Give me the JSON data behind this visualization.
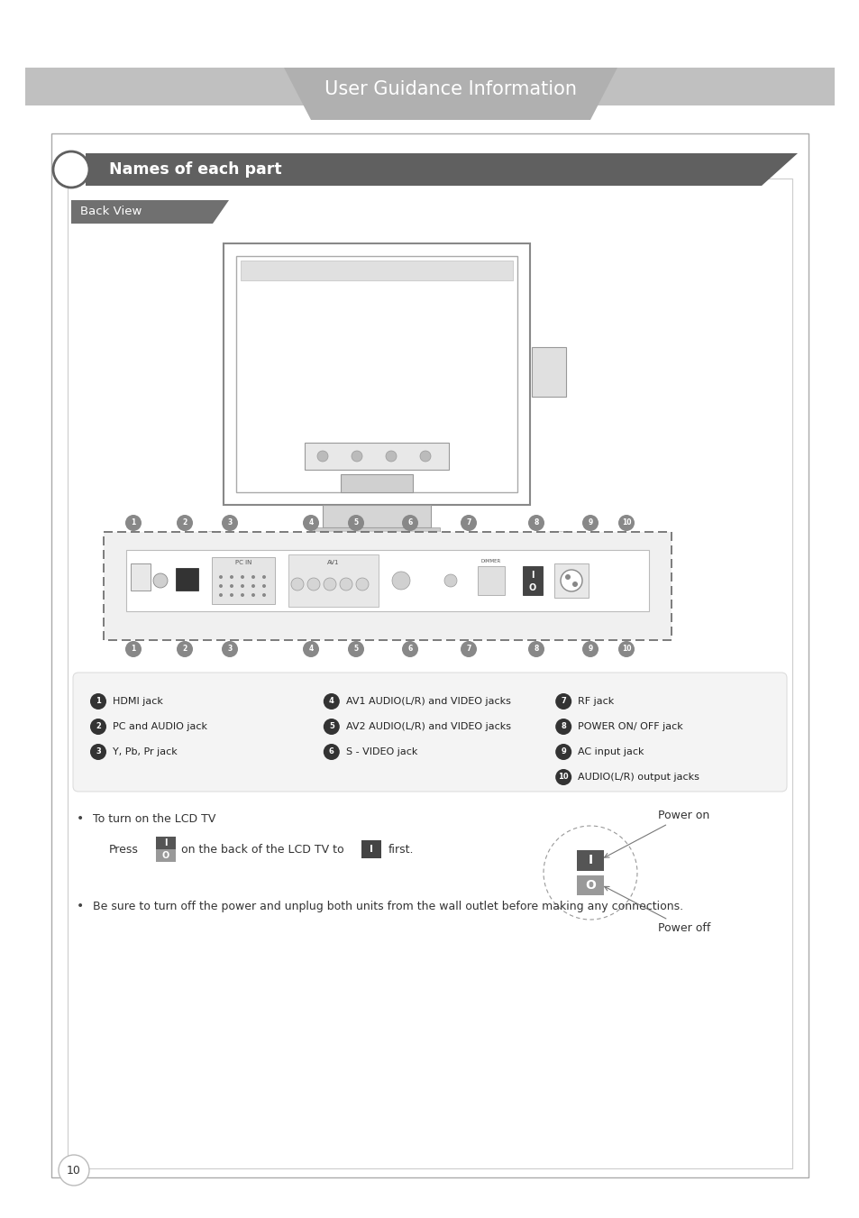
{
  "page_bg": "#ffffff",
  "header_bg": "#c0c0c0",
  "header_text": "User Guidance Information",
  "header_text_color": "#ffffff",
  "header_tab_color": "#b0b0b0",
  "section_bg": "#606060",
  "section_text": "Names of each part",
  "section_text_color": "#ffffff",
  "backview_bg": "#707070",
  "backview_text": "Back View",
  "backview_text_color": "#ffffff",
  "outer_border_color": "#aaaaaa",
  "inner_border_color": "#cccccc",
  "labels": [
    {
      "num": "1",
      "text": "HDMI jack"
    },
    {
      "num": "2",
      "text": "PC and AUDIO jack"
    },
    {
      "num": "3",
      "text": "Y, Pb, Pr jack"
    },
    {
      "num": "4",
      "text": "AV1 AUDIO(L/R) and VIDEO jacks"
    },
    {
      "num": "5",
      "text": "AV2 AUDIO(L/R) and VIDEO jacks"
    },
    {
      "num": "6",
      "text": "S - VIDEO jack"
    },
    {
      "num": "7",
      "text": "RF jack"
    },
    {
      "num": "8",
      "text": "POWER ON/ OFF jack"
    },
    {
      "num": "9",
      "text": "AC input jack"
    },
    {
      "num": "10",
      "text": "AUDIO(L/R) output jacks"
    }
  ],
  "bullet_text1": "To turn on the LCD TV",
  "bullet_text2": "Press",
  "bullet_text3": "on the back of the LCD TV to",
  "bullet_text4": "first.",
  "bullet_text5": "Be sure to turn off the power and unplug both units from the wall outlet before making any connections.",
  "power_on_text": "Power on",
  "power_off_text": "Power off",
  "page_num": "10",
  "label_circle_color": "#333333",
  "label_circle_text_color": "#ffffff",
  "dashed_border_color": "#666666"
}
